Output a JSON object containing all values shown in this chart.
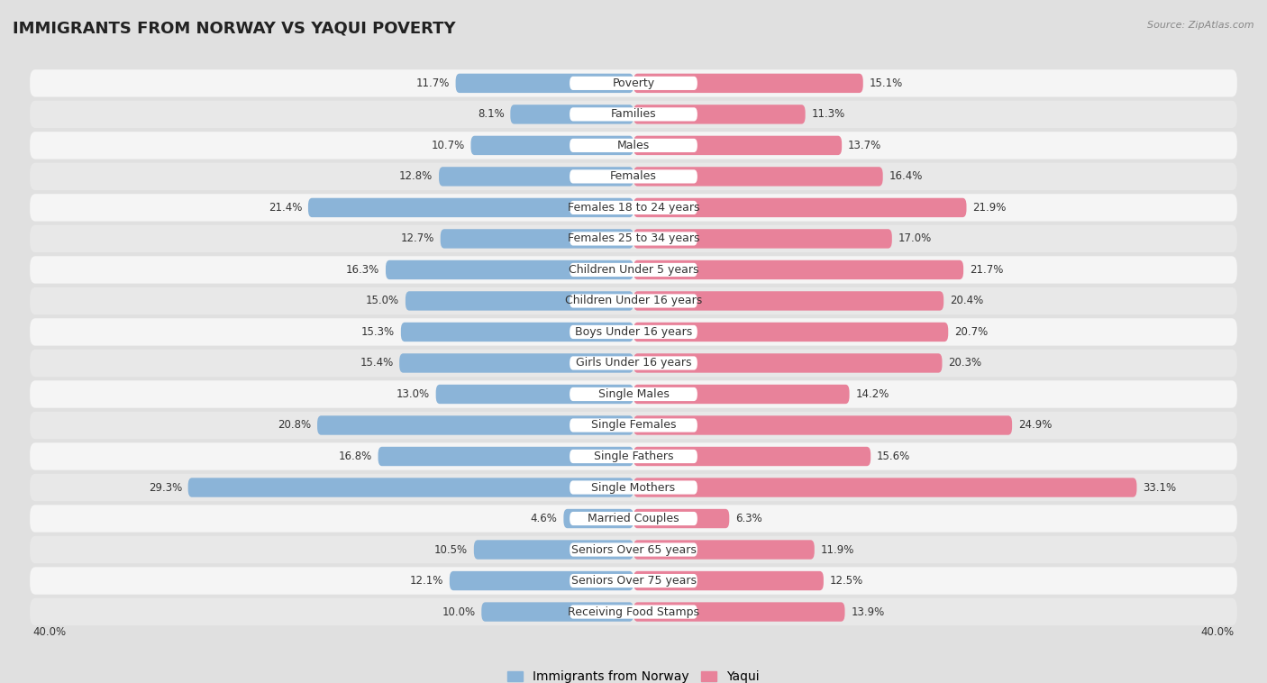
{
  "title": "IMMIGRANTS FROM NORWAY VS YAQUI POVERTY",
  "source": "Source: ZipAtlas.com",
  "categories": [
    "Poverty",
    "Families",
    "Males",
    "Females",
    "Females 18 to 24 years",
    "Females 25 to 34 years",
    "Children Under 5 years",
    "Children Under 16 years",
    "Boys Under 16 years",
    "Girls Under 16 years",
    "Single Males",
    "Single Females",
    "Single Fathers",
    "Single Mothers",
    "Married Couples",
    "Seniors Over 65 years",
    "Seniors Over 75 years",
    "Receiving Food Stamps"
  ],
  "norway_values": [
    11.7,
    8.1,
    10.7,
    12.8,
    21.4,
    12.7,
    16.3,
    15.0,
    15.3,
    15.4,
    13.0,
    20.8,
    16.8,
    29.3,
    4.6,
    10.5,
    12.1,
    10.0
  ],
  "yaqui_values": [
    15.1,
    11.3,
    13.7,
    16.4,
    21.9,
    17.0,
    21.7,
    20.4,
    20.7,
    20.3,
    14.2,
    24.9,
    15.6,
    33.1,
    6.3,
    11.9,
    12.5,
    13.9
  ],
  "norway_color": "#8bb4d8",
  "yaqui_color": "#e8829a",
  "norway_label": "Immigrants from Norway",
  "yaqui_label": "Yaqui",
  "xlim": 40.0,
  "row_color_odd": "#e8e8e8",
  "row_color_even": "#f5f5f5",
  "background_color": "#e0e0e0",
  "title_fontsize": 13,
  "label_fontsize": 9,
  "value_fontsize": 8.5,
  "legend_fontsize": 10
}
